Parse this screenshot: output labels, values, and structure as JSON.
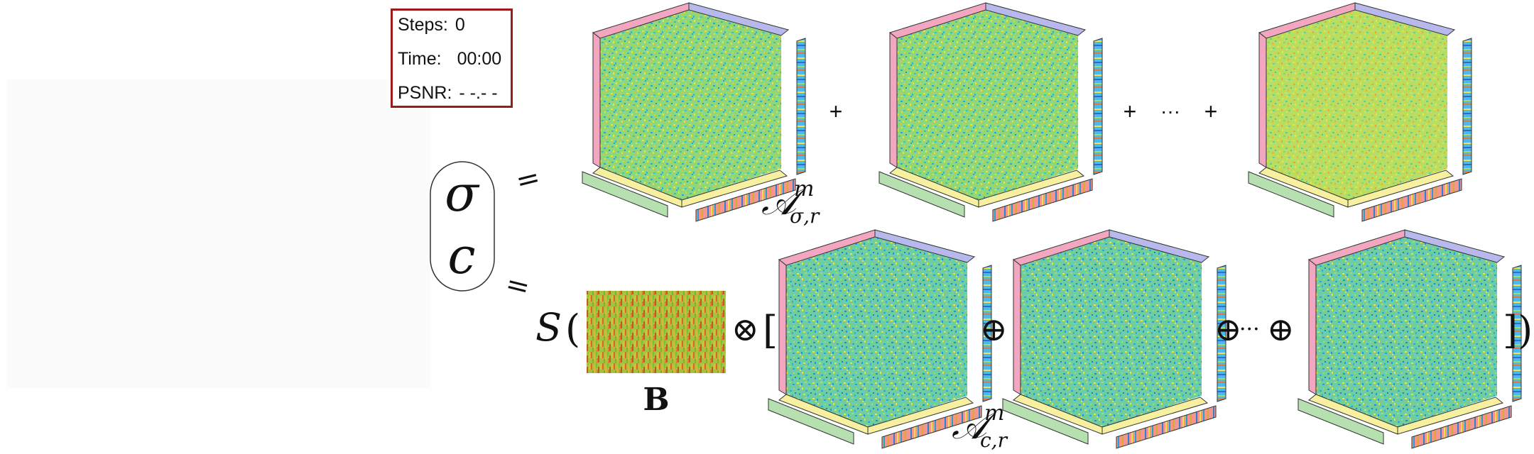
{
  "stats": {
    "steps_label": "Steps:",
    "steps_value": "0",
    "time_label": "Time:",
    "time_value": "00:00",
    "psnr_label": "PSNR:",
    "psnr_value": "- -.- -"
  },
  "equation": {
    "sigma": "σ",
    "c": "c",
    "equals": "=",
    "plus": "+",
    "ellipsis": "···",
    "oplus": "⊕",
    "otimes": "⊗",
    "S": "S",
    "open_paren": "(",
    "open_bracket": "[",
    "close": "])",
    "B": "B",
    "A_sigma_base": "𝒜",
    "A_sigma_sup": "m",
    "A_sigma_sub": "σ,r",
    "A_c_base": "𝒜",
    "A_c_sup": "m",
    "A_c_sub": "c,r"
  },
  "colors": {
    "stat_border": "#9b1b1b",
    "cube_face": "#7fd48a",
    "cube_face_alt": "#b9e36c",
    "texture_b": "#c8a030",
    "edge_pink": "#f2a6c0",
    "edge_lavender": "#b7b9ec",
    "edge_yellow": "#f7f0a0",
    "edge_green": "#b7e0b0",
    "edge_salmon": "#f3968c",
    "edge_blue": "#4fb8ea"
  }
}
